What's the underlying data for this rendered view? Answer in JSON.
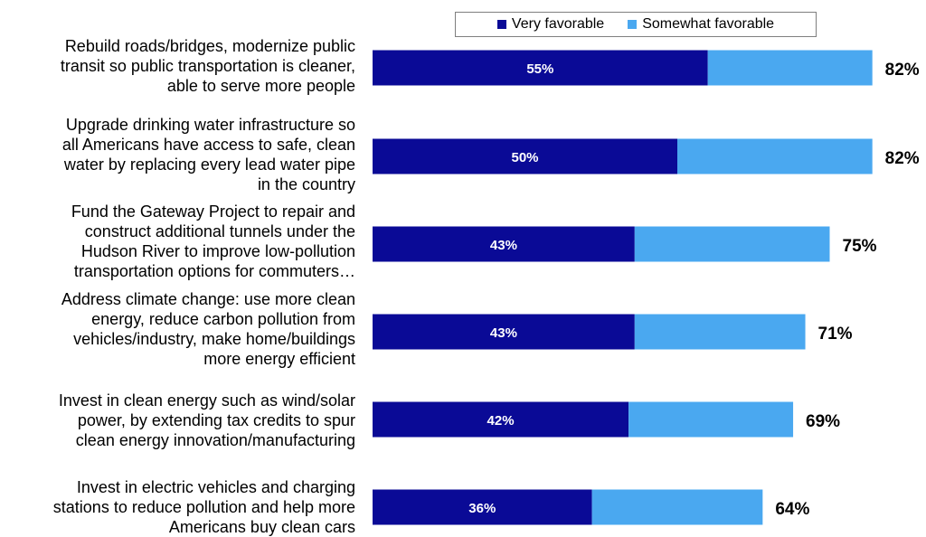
{
  "chart_data": {
    "type": "bar",
    "orientation": "horizontal",
    "stacked": true,
    "categories": [
      "Rebuild roads/bridges, modernize public transit so public transportation is cleaner, able to serve more people",
      "Upgrade drinking water infrastructure so all Americans have access to safe, clean water by replacing every lead water pipe in the country",
      "Fund the Gateway Project to repair and construct additional tunnels under the Hudson River to improve low-pollution transportation options for commuters…",
      "Address climate change: use more clean energy, reduce carbon pollution from vehicles/industry, make home/buildings more energy efficient",
      "Invest in clean energy such as wind/solar power, by extending tax credits to spur clean energy innovation/manufacturing",
      "Invest in electric vehicles and charging stations to reduce pollution and help more Americans buy clean cars"
    ],
    "category_lines": [
      [
        "Rebuild roads/bridges, modernize public",
        "transit so public transportation is cleaner,",
        "able to serve more people"
      ],
      [
        "Upgrade drinking water infrastructure so",
        "all Americans have access to safe, clean",
        "water by replacing every lead water pipe",
        "in the country"
      ],
      [
        "Fund the Gateway Project to repair and",
        "construct additional tunnels under the",
        "Hudson River to improve low-pollution",
        "transportation options for commuters…"
      ],
      [
        "Address climate change: use more clean",
        "energy, reduce carbon pollution from",
        "vehicles/industry, make home/buildings",
        "more energy efficient"
      ],
      [
        "Invest in clean energy such as wind/solar",
        "power, by extending tax credits to spur",
        "clean energy innovation/manufacturing"
      ],
      [
        "Invest in electric vehicles and charging",
        "stations to reduce pollution and help more",
        "Americans buy clean cars"
      ]
    ],
    "series": [
      {
        "name": "Very favorable",
        "color": "#0a0a96",
        "values": [
          55,
          50,
          43,
          43,
          42,
          36
        ]
      },
      {
        "name": "Somewhat favorable",
        "color": "#4aa8f0",
        "values": [
          27,
          32,
          32,
          28,
          27,
          28
        ]
      }
    ],
    "inner_labels": [
      "55%",
      "50%",
      "43%",
      "43%",
      "42%",
      "36%"
    ],
    "total_labels": [
      "82%",
      "82%",
      "75%",
      "71%",
      "69%",
      "64%"
    ],
    "xlim": [
      0,
      100
    ],
    "grid": false,
    "legend_position": "top"
  }
}
